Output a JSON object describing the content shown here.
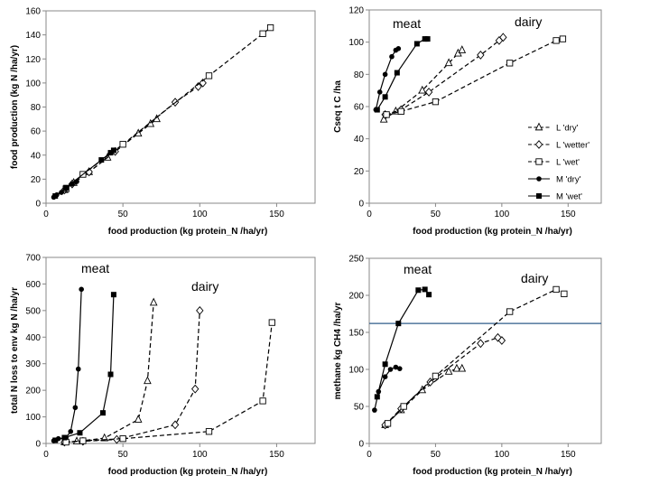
{
  "chart_data": [
    {
      "type": "scatter",
      "xlabel": "food production (kg protein_N /ha/yr)",
      "ylabel": "food production (kg N /ha/yr)",
      "xlim": [
        0,
        175
      ],
      "ylim": [
        0,
        160
      ],
      "xticks": [
        "0",
        "50",
        "100",
        "150"
      ],
      "yticks": [
        "0",
        "20",
        "40",
        "60",
        "80",
        "100",
        "120",
        "140",
        "160"
      ],
      "grid": false,
      "series": [
        {
          "name": "L 'dry'",
          "marker": "triangle-open",
          "line": "dashed",
          "points": [
            [
              12,
              11
            ],
            [
              18,
              17
            ],
            [
              28,
              26
            ],
            [
              40,
              38
            ],
            [
              60,
              58
            ],
            [
              68,
              66
            ],
            [
              72,
              70
            ]
          ]
        },
        {
          "name": "L 'wetter'",
          "marker": "diamond-open",
          "line": "dashed",
          "points": [
            [
              12,
              11
            ],
            [
              17,
              16
            ],
            [
              28,
              26
            ],
            [
              45,
              43
            ],
            [
              84,
              84
            ],
            [
              99,
              97
            ],
            [
              102,
              100
            ]
          ]
        },
        {
          "name": "L 'wet'",
          "marker": "square-open",
          "line": "dashed",
          "points": [
            [
              13,
              12
            ],
            [
              24,
              24
            ],
            [
              50,
              49
            ],
            [
              106,
              106
            ],
            [
              141,
              141
            ],
            [
              146,
              146
            ]
          ]
        },
        {
          "name": "M 'dry'",
          "marker": "circle-filled",
          "line": "solid",
          "points": [
            [
              5,
              5
            ],
            [
              7,
              7
            ],
            [
              10,
              9
            ],
            [
              13,
              12
            ],
            [
              17,
              16
            ],
            [
              20,
              18
            ]
          ]
        },
        {
          "name": "M 'wet'",
          "marker": "square-filled",
          "line": "solid",
          "points": [
            [
              6,
              6
            ],
            [
              13,
              13
            ],
            [
              36,
              36
            ],
            [
              42,
              42
            ],
            [
              44,
              44
            ]
          ]
        }
      ]
    },
    {
      "type": "scatter",
      "xlabel": "food production (kg protein_N /ha/yr)",
      "ylabel": "Cseq t C /ha",
      "xlim": [
        0,
        175
      ],
      "ylim": [
        0,
        120
      ],
      "xticks": [
        "0",
        "50",
        "100",
        "150"
      ],
      "yticks": [
        "0",
        "20",
        "40",
        "60",
        "80",
        "100",
        "120"
      ],
      "grid": false,
      "annotations": [
        "meat",
        "dairy"
      ],
      "legend_position": "right",
      "series": [
        {
          "name": "L 'dry'",
          "marker": "triangle-open",
          "line": "dashed",
          "points": [
            [
              11,
              52
            ],
            [
              20,
              57
            ],
            [
              40,
              70
            ],
            [
              60,
              87
            ],
            [
              67,
              93
            ],
            [
              70,
              95
            ]
          ]
        },
        {
          "name": "L 'wetter'",
          "marker": "diamond-open",
          "line": "dashed",
          "points": [
            [
              12,
              55
            ],
            [
              24,
              58
            ],
            [
              45,
              69
            ],
            [
              84,
              92
            ],
            [
              98,
              101
            ],
            [
              101,
              103
            ]
          ]
        },
        {
          "name": "L 'wet'",
          "marker": "square-open",
          "line": "dashed",
          "points": [
            [
              13,
              55
            ],
            [
              24,
              57
            ],
            [
              50,
              63
            ],
            [
              106,
              87
            ],
            [
              141,
              101
            ],
            [
              146,
              102
            ]
          ]
        },
        {
          "name": "M 'dry'",
          "marker": "circle-filled",
          "line": "solid",
          "points": [
            [
              5,
              58
            ],
            [
              8,
              69
            ],
            [
              12,
              80
            ],
            [
              17,
              91
            ],
            [
              20,
              95
            ],
            [
              22,
              96
            ]
          ]
        },
        {
          "name": "M 'wet'",
          "marker": "square-filled",
          "line": "solid",
          "points": [
            [
              6,
              58
            ],
            [
              12,
              66
            ],
            [
              21,
              81
            ],
            [
              36,
              99
            ],
            [
              42,
              102
            ],
            [
              44,
              102
            ]
          ]
        }
      ]
    },
    {
      "type": "scatter",
      "xlabel": "food production (kg protein_N /ha/yr)",
      "ylabel": "total N loss to env kg N /ha/yr",
      "xlim": [
        0,
        175
      ],
      "ylim": [
        0,
        700
      ],
      "xticks": [
        "0",
        "50",
        "100",
        "150"
      ],
      "yticks": [
        "0",
        "100",
        "200",
        "300",
        "400",
        "500",
        "600",
        "700"
      ],
      "grid": false,
      "annotations": [
        "meat",
        "dairy"
      ],
      "series": [
        {
          "name": "L 'dry'",
          "marker": "triangle-open",
          "line": "dashed",
          "points": [
            [
              12,
              5
            ],
            [
              20,
              8
            ],
            [
              38,
              20
            ],
            [
              60,
              90
            ],
            [
              66,
              235
            ],
            [
              70,
              530
            ]
          ]
        },
        {
          "name": "L 'wetter'",
          "marker": "diamond-open",
          "line": "dashed",
          "points": [
            [
              12,
              5
            ],
            [
              24,
              8
            ],
            [
              46,
              15
            ],
            [
              84,
              70
            ],
            [
              97,
              205
            ],
            [
              100,
              500
            ]
          ]
        },
        {
          "name": "L 'wet'",
          "marker": "square-open",
          "line": "dashed",
          "points": [
            [
              13,
              5
            ],
            [
              24,
              10
            ],
            [
              50,
              18
            ],
            [
              106,
              45
            ],
            [
              141,
              160
            ],
            [
              147,
              455
            ]
          ]
        },
        {
          "name": "M 'dry'",
          "marker": "circle-filled",
          "line": "solid",
          "points": [
            [
              5,
              10
            ],
            [
              8,
              18
            ],
            [
              13,
              22
            ],
            [
              16,
              45
            ],
            [
              19,
              135
            ],
            [
              21,
              280
            ],
            [
              23,
              580
            ]
          ]
        },
        {
          "name": "M 'wet'",
          "marker": "square-filled",
          "line": "solid",
          "points": [
            [
              6,
              12
            ],
            [
              12,
              22
            ],
            [
              22,
              40
            ],
            [
              37,
              115
            ],
            [
              42,
              260
            ],
            [
              44,
              560
            ]
          ]
        }
      ]
    },
    {
      "type": "scatter",
      "xlabel": "food production (kg protein_N /ha/yr)",
      "ylabel": "methane kg CH4 /ha/yr",
      "xlim": [
        0,
        175
      ],
      "ylim": [
        0,
        250
      ],
      "xticks": [
        "0",
        "50",
        "100",
        "150"
      ],
      "yticks": [
        "0",
        "50",
        "100",
        "150",
        "200",
        "250"
      ],
      "grid": false,
      "reference_line_y": 162,
      "annotations": [
        "meat",
        "dairy"
      ],
      "series": [
        {
          "name": "L 'dry'",
          "marker": "triangle-open",
          "line": "dashed",
          "points": [
            [
              12,
              25
            ],
            [
              24,
              45
            ],
            [
              40,
              72
            ],
            [
              60,
              97
            ],
            [
              66,
              101
            ],
            [
              70,
              101
            ]
          ]
        },
        {
          "name": "L 'wetter'",
          "marker": "diamond-open",
          "line": "dashed",
          "points": [
            [
              12,
              25
            ],
            [
              24,
              47
            ],
            [
              46,
              83
            ],
            [
              84,
              135
            ],
            [
              97,
              143
            ],
            [
              100,
              139
            ]
          ]
        },
        {
          "name": "L 'wet'",
          "marker": "square-open",
          "line": "dashed",
          "points": [
            [
              14,
              27
            ],
            [
              26,
              50
            ],
            [
              50,
              91
            ],
            [
              106,
              178
            ],
            [
              141,
              208
            ],
            [
              147,
              202
            ]
          ]
        },
        {
          "name": "M 'dry'",
          "marker": "circle-filled",
          "line": "solid",
          "points": [
            [
              4,
              45
            ],
            [
              7,
              70
            ],
            [
              12,
              90
            ],
            [
              16,
              100
            ],
            [
              20,
              103
            ],
            [
              23,
              101
            ]
          ]
        },
        {
          "name": "M 'wet'",
          "marker": "square-filled",
          "line": "solid",
          "points": [
            [
              6,
              63
            ],
            [
              12,
              107
            ],
            [
              22,
              162
            ],
            [
              37,
              207
            ],
            [
              42,
              208
            ],
            [
              45,
              201
            ]
          ]
        }
      ]
    }
  ],
  "panels": [
    {
      "annotations": []
    },
    {
      "annotations": [
        "meat",
        "dairy"
      ]
    },
    {
      "annotations": [
        "meat",
        "dairy"
      ]
    },
    {
      "annotations": [
        "meat",
        "dairy"
      ]
    }
  ],
  "colors": {
    "axis": "#888888",
    "series": "#000000",
    "reference_line": "#2f5d8a"
  }
}
